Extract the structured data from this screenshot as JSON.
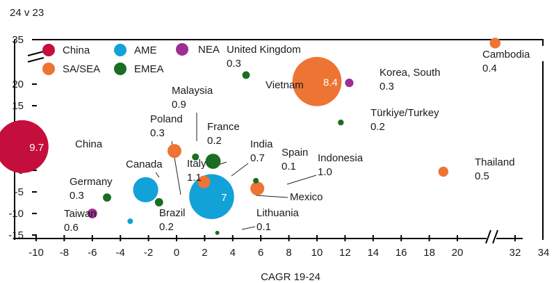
{
  "chart_data": {
    "type": "scatter",
    "subtype": "bubble",
    "title": "24 v 23",
    "xlabel": "CAGR 19-24",
    "ylabel": "",
    "xlim": [
      -11,
      34
    ],
    "ylim": [
      -15,
      35
    ],
    "x_axis_break": [
      21,
      31
    ],
    "y_axis_break": [
      23,
      31
    ],
    "x_ticks": [
      "-10",
      "-8",
      "-6",
      "-4",
      "-2",
      "0",
      "2",
      "4",
      "6",
      "8",
      "10",
      "12",
      "14",
      "16",
      "18",
      "20",
      "32",
      "34"
    ],
    "y_ticks": [
      "35",
      "20",
      "15",
      "10",
      "5",
      "0",
      "-5",
      "-10",
      "-15"
    ],
    "grid": false,
    "legend_placement": "top-left",
    "legend": [
      {
        "name": "China",
        "color": "#C40E3C"
      },
      {
        "name": "SA/SEA",
        "color": "#ED7433"
      },
      {
        "name": "AME",
        "color": "#12A2D8"
      },
      {
        "name": "EMEA",
        "color": "#1A6E24"
      },
      {
        "name": "NEA",
        "color": "#9E2E94"
      }
    ],
    "points": [
      {
        "group": "China",
        "x": -11.0,
        "y": 5.5,
        "size": 9.7,
        "value_label": "9.7"
      },
      {
        "group": "SA/SEA",
        "x": 10.0,
        "y": 20.6,
        "size": 8.4,
        "value_label": "8.4"
      },
      {
        "group": "AME",
        "x": 2.5,
        "y": -6.1,
        "size": 7.0,
        "value_label": "7"
      },
      {
        "group": "NEA",
        "x": 12.3,
        "y": 20.3,
        "size": 0.25
      },
      {
        "group": "EMEA",
        "x": 4.95,
        "y": 22.1,
        "size": 0.2
      },
      {
        "group": "EMEA",
        "x": 11.7,
        "y": 11.1,
        "size": 0.12
      },
      {
        "group": "SA/SEA",
        "x": 30.6,
        "y": 34.2,
        "size": 0.4
      },
      {
        "group": "SA/SEA",
        "x": 19.0,
        "y": -0.3,
        "size": 0.35
      },
      {
        "group": "SA/SEA",
        "x": -0.15,
        "y": 4.5,
        "size": 0.67
      },
      {
        "group": "EMEA",
        "x": 1.35,
        "y": 3.1,
        "size": 0.17
      },
      {
        "group": "EMEA",
        "x": 2.6,
        "y": 2.1,
        "size": 0.8
      },
      {
        "group": "SA/SEA",
        "x": 1.95,
        "y": -2.7,
        "size": 0.55
      },
      {
        "group": "AME",
        "x": -2.2,
        "y": -4.5,
        "size": 2.2
      },
      {
        "group": "EMEA",
        "x": -1.25,
        "y": -7.4,
        "size": 0.24
      },
      {
        "group": "EMEA",
        "x": -4.95,
        "y": -6.3,
        "size": 0.24
      },
      {
        "group": "NEA",
        "x": -6.0,
        "y": -10.0,
        "size": 0.33
      },
      {
        "group": "AME",
        "x": -3.3,
        "y": -11.8,
        "size": 0.11
      },
      {
        "group": "SA/SEA",
        "x": 5.75,
        "y": -4.2,
        "size": 0.67
      },
      {
        "group": "EMEA",
        "x": 5.65,
        "y": -2.4,
        "size": 0.11
      },
      {
        "group": "EMEA",
        "x": 2.9,
        "y": -14.5,
        "size": 0.06
      }
    ],
    "annotations": [
      {
        "name": "United Kingdom",
        "value": "0.3"
      },
      {
        "name": "Malaysia",
        "value": "0.9"
      },
      {
        "name": "Poland",
        "value": "0.3"
      },
      {
        "name": "France",
        "value": "0.2"
      },
      {
        "name": "China",
        "value": ""
      },
      {
        "name": "Canada",
        "value": ""
      },
      {
        "name": "Italy",
        "value": "1.1"
      },
      {
        "name": "India",
        "value": "0.7"
      },
      {
        "name": "Spain",
        "value": "0.1"
      },
      {
        "name": "Indonesia",
        "value": "1.0"
      },
      {
        "name": "Mexico",
        "value": ""
      },
      {
        "name": "Germany",
        "value": "0.3"
      },
      {
        "name": "Taiwan",
        "value": "0.6"
      },
      {
        "name": "Brazil",
        "value": "0.2"
      },
      {
        "name": "Lithuania",
        "value": "0.1"
      },
      {
        "name": "Vietnam",
        "value": ""
      },
      {
        "name": "Korea, South",
        "value": "0.3"
      },
      {
        "name": "Türkiye/Turkey",
        "value": "0.2"
      },
      {
        "name": "Cambodia",
        "value": "0.4"
      },
      {
        "name": "Thailand",
        "value": "0.5"
      }
    ]
  }
}
